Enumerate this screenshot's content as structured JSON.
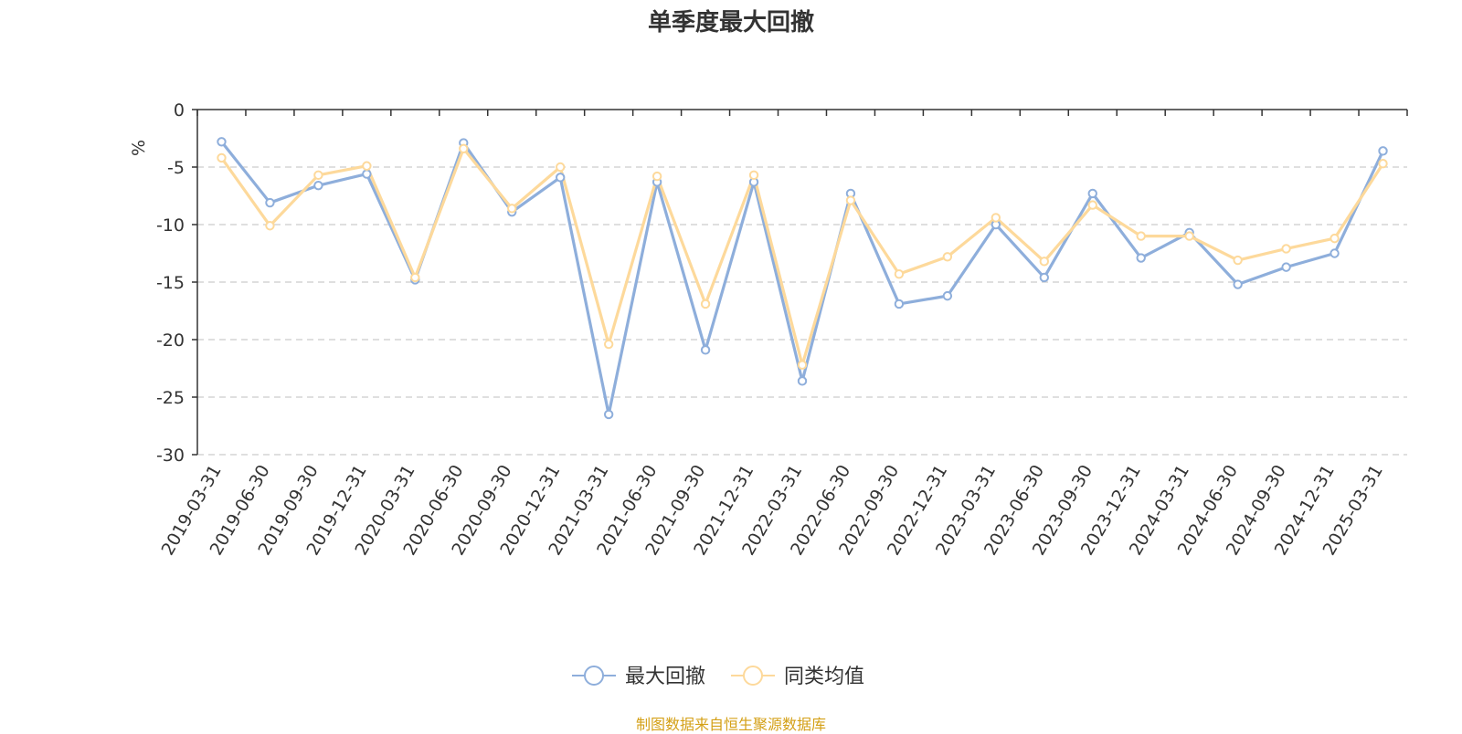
{
  "chart_data": {
    "type": "line",
    "title": "单季度最大回撤",
    "ylabel": "%",
    "ylim": [
      -30,
      0
    ],
    "yticks": [
      0,
      -5,
      -10,
      -15,
      -20,
      -25,
      -30
    ],
    "grid": true,
    "legend_position": "bottom-center",
    "categories": [
      "2019-03-31",
      "2019-06-30",
      "2019-09-30",
      "2019-12-31",
      "2020-03-31",
      "2020-06-30",
      "2020-09-30",
      "2020-12-31",
      "2021-03-31",
      "2021-06-30",
      "2021-09-30",
      "2021-12-31",
      "2022-03-31",
      "2022-06-30",
      "2022-09-30",
      "2022-12-31",
      "2023-03-31",
      "2023-06-30",
      "2023-09-30",
      "2023-12-31",
      "2024-03-31",
      "2024-06-30",
      "2024-09-30",
      "2024-12-31",
      "2025-03-31"
    ],
    "series": [
      {
        "name": "最大回撤",
        "color": "#8eaedb",
        "values": [
          -2.8,
          -8.1,
          -6.6,
          -5.6,
          -14.8,
          -2.9,
          -8.9,
          -5.9,
          -26.5,
          -6.3,
          -20.9,
          -6.3,
          -23.6,
          -7.3,
          -16.9,
          -16.2,
          -10.0,
          -14.6,
          -7.3,
          -12.9,
          -10.7,
          -15.2,
          -13.7,
          -12.5,
          -3.6
        ]
      },
      {
        "name": "同类均值",
        "color": "#fdd99b",
        "values": [
          -4.2,
          -10.1,
          -5.7,
          -4.9,
          -14.6,
          -3.4,
          -8.6,
          -5.0,
          -20.4,
          -5.8,
          -16.9,
          -5.7,
          -22.2,
          -7.9,
          -14.3,
          -12.8,
          -9.4,
          -13.2,
          -8.3,
          -11.0,
          -11.0,
          -13.1,
          -12.1,
          -11.2,
          -4.7
        ]
      }
    ]
  },
  "footer": {
    "source": "制图数据来自恒生聚源数据库"
  }
}
